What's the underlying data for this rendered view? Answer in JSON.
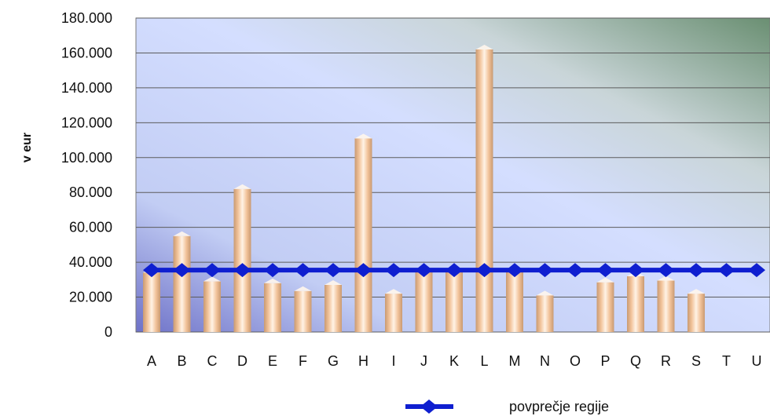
{
  "chart_data": {
    "type": "bar",
    "ylabel": "v eur",
    "categories": [
      "A",
      "B",
      "C",
      "D",
      "E",
      "F",
      "G",
      "H",
      "I",
      "J",
      "K",
      "L",
      "M",
      "N",
      "O",
      "P",
      "Q",
      "R",
      "S",
      "T",
      "U"
    ],
    "ylim": [
      0,
      180000
    ],
    "y_ticks": [
      0,
      20000,
      40000,
      60000,
      80000,
      100000,
      120000,
      140000,
      160000,
      180000
    ],
    "y_tick_labels": [
      "0",
      "20.000",
      "40.000",
      "60.000",
      "80.000",
      "100.000",
      "120.000",
      "140.000",
      "160.000",
      "180.000"
    ],
    "series": [
      {
        "type": "bar",
        "values": [
          34000,
          55000,
          29000,
          82000,
          28000,
          23500,
          27000,
          111000,
          22000,
          35000,
          35000,
          162000,
          35000,
          21000,
          0,
          28500,
          32000,
          29500,
          22000,
          0,
          0
        ]
      },
      {
        "type": "line",
        "name": "povprečje regije",
        "values": [
          35500,
          35500,
          35500,
          35500,
          35500,
          35500,
          35500,
          35500,
          35500,
          35500,
          35500,
          35500,
          35500,
          35500,
          35500,
          35500,
          35500,
          35500,
          35500,
          35500,
          35500
        ]
      }
    ],
    "grid": true,
    "legend_position": "bottom",
    "colors": {
      "bar": "#f5c9a2",
      "line": "#0f1fd0"
    }
  }
}
